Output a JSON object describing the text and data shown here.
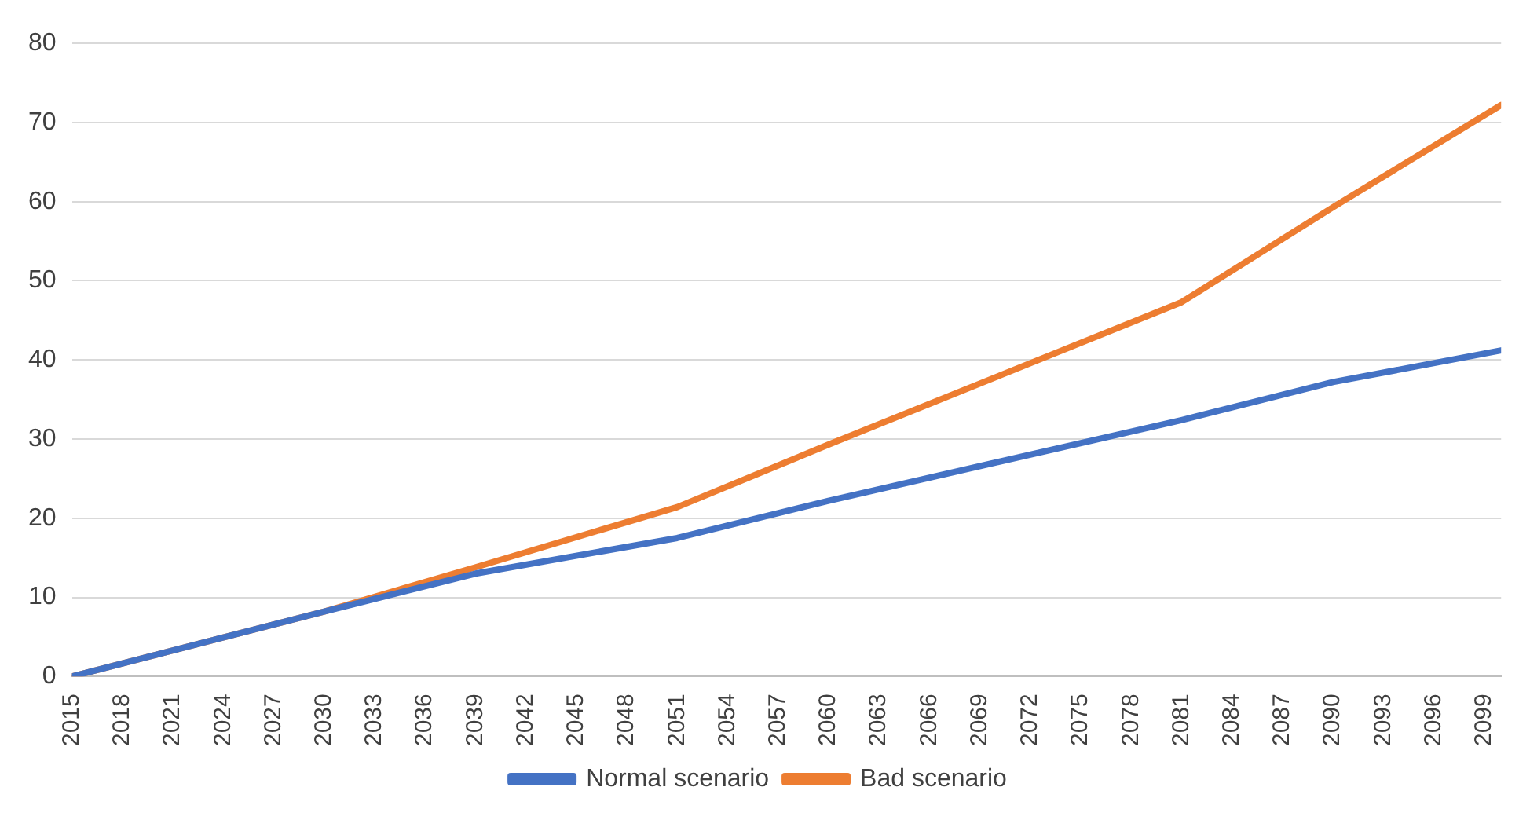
{
  "chart_data": {
    "type": "line",
    "xlim": [
      2015,
      2100
    ],
    "xticks": [
      2015,
      2018,
      2021,
      2024,
      2027,
      2030,
      2033,
      2036,
      2039,
      2042,
      2045,
      2048,
      2051,
      2054,
      2057,
      2060,
      2063,
      2066,
      2069,
      2072,
      2075,
      2078,
      2081,
      2084,
      2087,
      2090,
      2093,
      2096,
      2099
    ],
    "ylim": [
      0,
      80
    ],
    "yticks": [
      0,
      10,
      20,
      30,
      40,
      50,
      60,
      70,
      80
    ],
    "grid": "y",
    "legend": "bottom",
    "marker": "none",
    "line_style": "solid",
    "series": [
      {
        "name": "Normal scenario",
        "color": "#4472c4",
        "x": [
          2015,
          2030,
          2039,
          2051,
          2060,
          2081,
          2090,
          2100
        ],
        "values": [
          0,
          8.2,
          13,
          17.5,
          22.2,
          32.4,
          37.2,
          41.2
        ]
      },
      {
        "name": "Bad scenario",
        "color": "#ed7d31",
        "x": [
          2015,
          2030,
          2039,
          2051,
          2060,
          2081,
          2090,
          2100
        ],
        "values": [
          0,
          8.2,
          13.8,
          21.4,
          29.3,
          47.3,
          59.3,
          72.2
        ]
      }
    ]
  }
}
